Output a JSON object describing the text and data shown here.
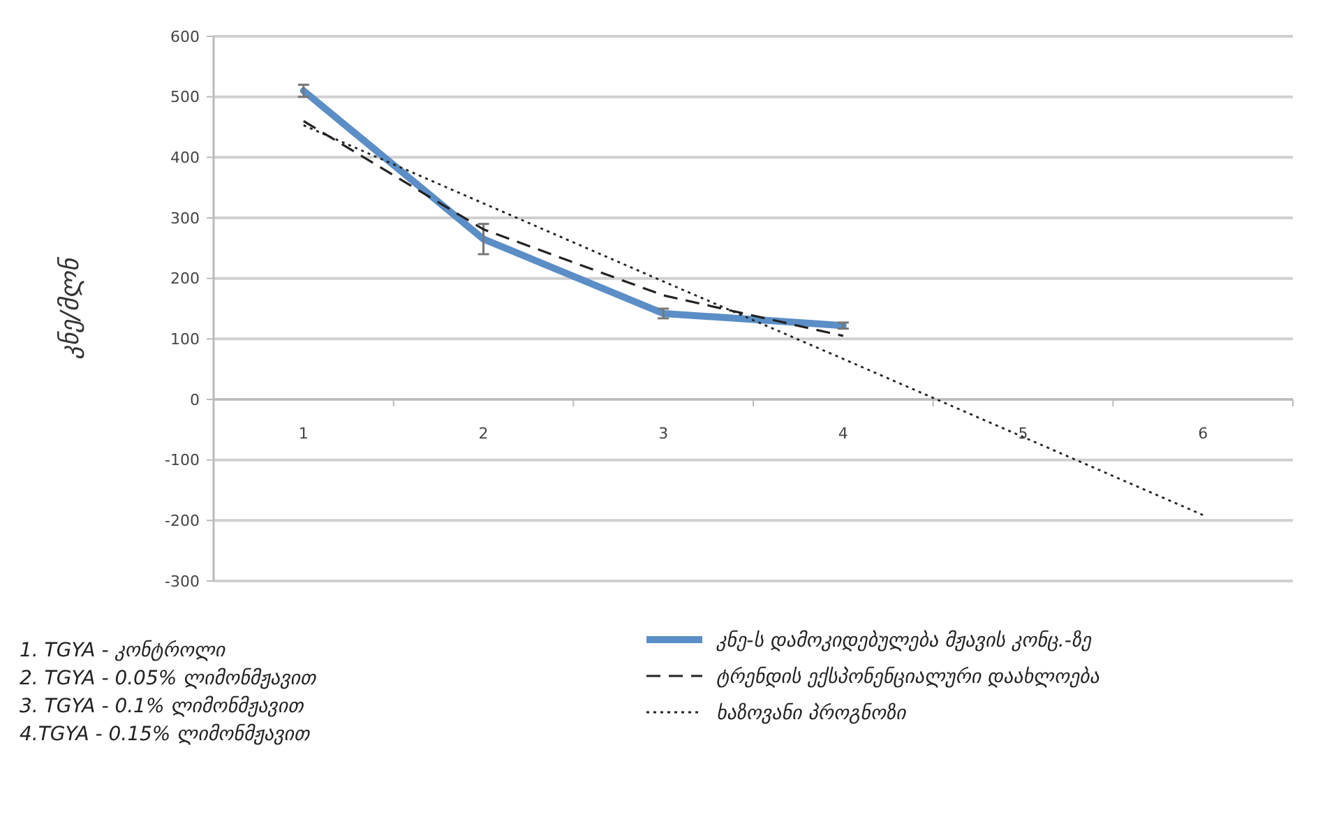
{
  "chart_data": {
    "type": "line",
    "ylabel": "კნე/მლნ",
    "categories": [
      "1",
      "2",
      "3",
      "4",
      "5",
      "6"
    ],
    "ylim": [
      -300,
      600
    ],
    "yticks": [
      -300,
      -200,
      -100,
      0,
      100,
      200,
      300,
      400,
      500,
      600
    ],
    "grid": "y",
    "legend": "bottom right",
    "marker": "none",
    "series": [
      {
        "name": "კნე-ს დამოკიდებულება მჟავის კონც.-ზე",
        "color": "#5b8ec6",
        "values": [
          510,
          265,
          142,
          122,
          null,
          null
        ],
        "errors": [
          10,
          25,
          8,
          5,
          null,
          null
        ],
        "line_style": "solid"
      },
      {
        "name": "ტრენდის ექსპონენციალური დაახლოება",
        "color": "#222222",
        "values": [
          460,
          281,
          172,
          105,
          null,
          null
        ],
        "line_style": "dashed"
      },
      {
        "name": "ხაზოვანი პროგნოზი",
        "color": "#222222",
        "values": [
          453,
          324,
          195,
          67,
          -62,
          -191
        ],
        "line_style": "dotted"
      }
    ],
    "annotations": [
      "1. TGYA - კონტროლი",
      "2. TGYA - 0.05% ლიმონმჟავით",
      "3. TGYA - 0.1% ლიმონმჟავით",
      "4.TGYA - 0.15% ლიმონმჟავით"
    ]
  }
}
